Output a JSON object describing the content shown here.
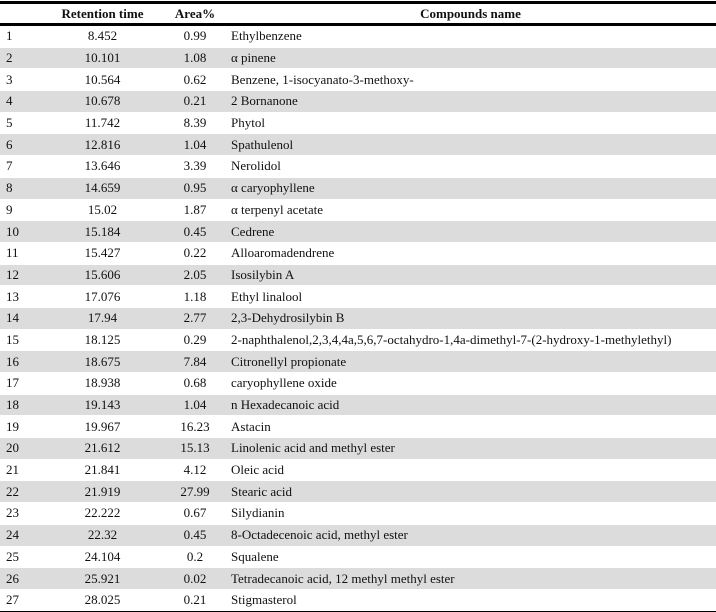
{
  "headers": [
    "",
    "Retention time",
    "Area%",
    "Compounds name"
  ],
  "rows": [
    [
      "1",
      "8.452",
      "0.99",
      "Ethylbenzene"
    ],
    [
      "2",
      "10.101",
      "1.08",
      "α pinene"
    ],
    [
      "3",
      "10.564",
      "0.62",
      "Benzene, 1-isocyanato-3-methoxy-"
    ],
    [
      "4",
      "10.678",
      "0.21",
      "2 Bornanone"
    ],
    [
      "5",
      "11.742",
      "8.39",
      "Phytol"
    ],
    [
      "6",
      "12.816",
      "1.04",
      "Spathulenol"
    ],
    [
      "7",
      "13.646",
      "3.39",
      "Nerolidol"
    ],
    [
      "8",
      "14.659",
      "0.95",
      "α caryophyllene"
    ],
    [
      "9",
      "15.02",
      "1.87",
      "α terpenyl acetate"
    ],
    [
      "10",
      "15.184",
      "0.45",
      "Cedrene"
    ],
    [
      "11",
      "15.427",
      "0.22",
      "Alloaromadendrene"
    ],
    [
      "12",
      "15.606",
      "2.05",
      "Isosilybin A"
    ],
    [
      "13",
      "17.076",
      "1.18",
      "Ethyl linalool"
    ],
    [
      "14",
      "17.94",
      "2.77",
      "2,3-Dehydrosilybin B"
    ],
    [
      "15",
      "18.125",
      "0.29",
      "2-naphthalenol,2,3,4,4a,5,6,7-octahydro-1,4a-dimethyl-7-(2-hydroxy-1-methylethyl)"
    ],
    [
      "16",
      "18.675",
      "7.84",
      "Citronellyl propionate"
    ],
    [
      "17",
      "18.938",
      "0.68",
      "caryophyllene oxide"
    ],
    [
      "18",
      "19.143",
      "1.04",
      "n Hexadecanoic acid"
    ],
    [
      "19",
      "19.967",
      "16.23",
      "Astacin"
    ],
    [
      "20",
      "21.612",
      "15.13",
      "Linolenic acid and methyl ester"
    ],
    [
      "21",
      "21.841",
      "4.12",
      "Oleic acid"
    ],
    [
      "22",
      "21.919",
      "27.99",
      "Stearic acid"
    ],
    [
      "23",
      "22.222",
      "0.67",
      "Silydianin"
    ],
    [
      "24",
      "22.32",
      "0.45",
      "8-Octadecenoic acid, methyl ester"
    ],
    [
      "25",
      "24.104",
      "0.2",
      "Squalene"
    ],
    [
      "26",
      "25.921",
      "0.02",
      "Tetradecanoic acid, 12 methyl methyl ester"
    ],
    [
      "27",
      "28.025",
      "0.21",
      "Stigmasterol"
    ]
  ]
}
